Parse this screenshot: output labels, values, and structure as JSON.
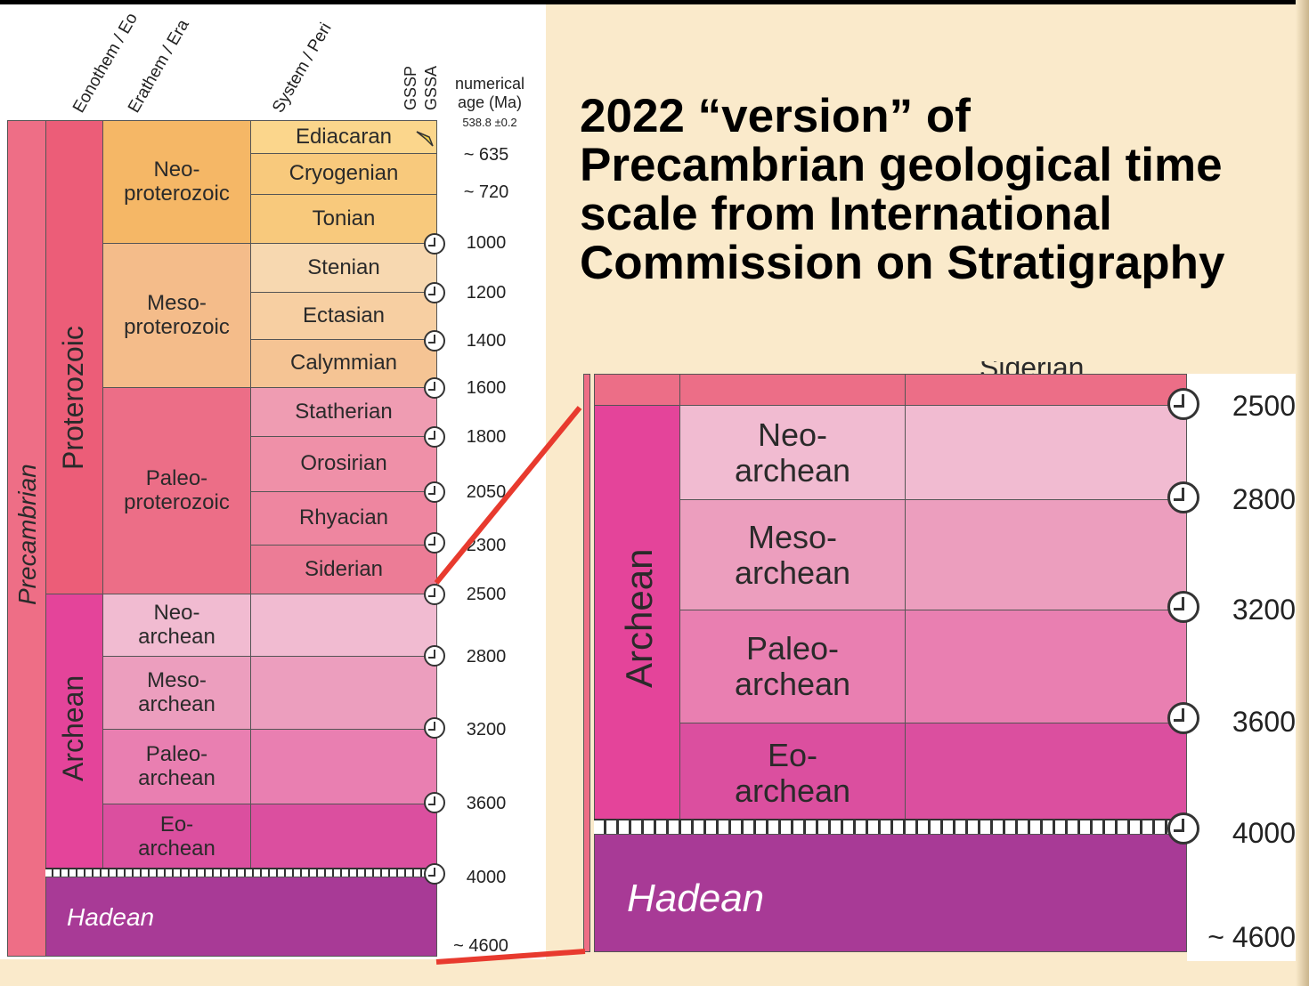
{
  "headers": {
    "eonothem": "Eonothem / Eo",
    "erathem": "Erathem / Era",
    "system": "System / Peri",
    "gssp": "GSSP",
    "gssa": "GSSA",
    "age_line1": "numerical",
    "age_line2": "age (Ma)",
    "age_base": "538.8 ±0.2"
  },
  "title": "2022 “version” of Precambrian geological time scale from International Commission on Stratigraphy",
  "eons": [
    "Precambrian"
  ],
  "eras_vertical": {
    "proterozoic": "Proterozoic",
    "archean": "Archean",
    "hadean": "Hadean"
  },
  "erathems": {
    "neoproterozoic": "Neo-proterozoic",
    "mesoproterozoic": "Meso-proterozoic",
    "paleoproterozoic": "Paleo-proterozoic",
    "neoarchean": "Neo-archean",
    "mesoarchean": "Meso-archean",
    "paleoarchean": "Paleo-archean",
    "eoarchean": "Eo-archean"
  },
  "periods": {
    "ediacaran": "Ediacaran",
    "cryogenian": "Cryogenian",
    "tonian": "Tonian",
    "stenian": "Stenian",
    "ectasian": "Ectasian",
    "calymmian": "Calymmian",
    "statherian": "Statherian",
    "orosirian": "Orosirian",
    "rhyacian": "Rhyacian",
    "siderian": "Siderian"
  },
  "ages": {
    "a635": "~ 635",
    "a720": "~ 720",
    "a1000": "1000",
    "a1200": "1200",
    "a1400": "1400",
    "a1600": "1600",
    "a1800": "1800",
    "a2050": "2050",
    "a2300": "2300",
    "a2500": "2500",
    "a2800": "2800",
    "a3200": "3200",
    "a3600": "3600",
    "a4000": "4000",
    "a4600": "~ 4600"
  },
  "zoom": {
    "siderian_partial": "Siderian",
    "archean": "Archean",
    "hadean": "Hadean",
    "ages": [
      "2500",
      "2800",
      "3200",
      "3600",
      "4000",
      "~ 4600"
    ]
  },
  "colors": {
    "precambrian": "#ee6e86",
    "proterozoic": "#ec5d78",
    "neoproterozoic": "#f5b766",
    "neoproterozoic_periods": "#f8c97c",
    "mesoproterozoic": "#f4bc8a",
    "mesoproterozoic_periods": "#f7d2a6",
    "paleoproterozoic": "#ec6e87",
    "paleoproterozoic_periods": "#ef8aa2",
    "archean": "#e4449a",
    "neoarchean": "#f1bbd1",
    "mesoarchean": "#ec9ebe",
    "paleoarchean": "#e97fb1",
    "eoarchean": "#db4f9f",
    "hadean": "#a83a96",
    "connector": "#e83a2e"
  }
}
